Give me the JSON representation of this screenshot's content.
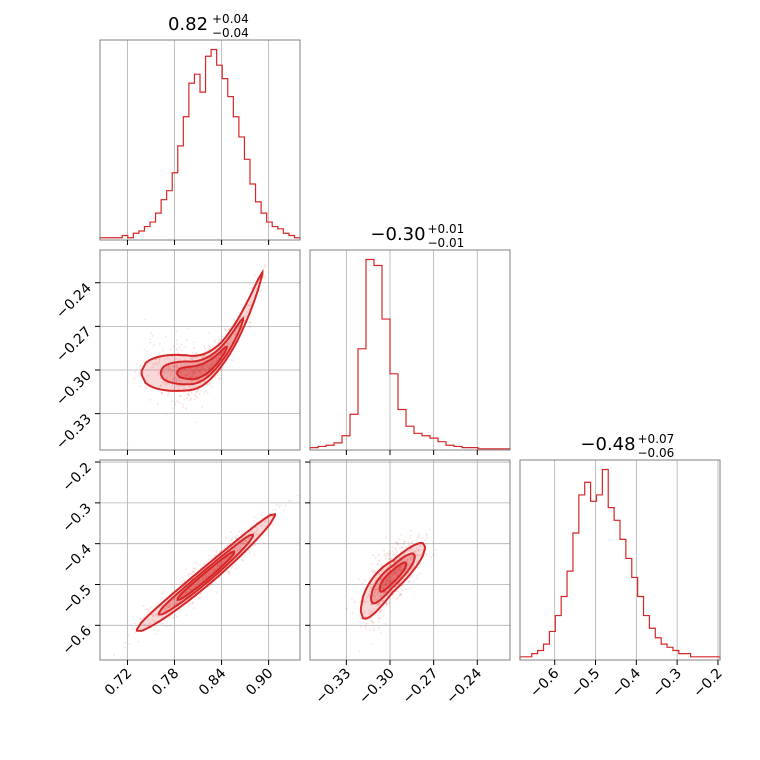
{
  "chart_data": {
    "type": "corner",
    "color": "#d62728",
    "grid": true,
    "parameters": [
      {
        "summary": {
          "median": "0.82",
          "plus": "+0.04",
          "minus": "−0.04"
        },
        "range": [
          0.685,
          0.94
        ],
        "ticks": [
          {
            "value": 0.72,
            "label": "0.72"
          },
          {
            "value": 0.78,
            "label": "0.78"
          },
          {
            "value": 0.84,
            "label": "0.84"
          },
          {
            "value": 0.9,
            "label": "0.90"
          }
        ]
      },
      {
        "summary": {
          "median": "−0.30",
          "plus": "+0.01",
          "minus": "−0.01"
        },
        "range": [
          -0.355,
          -0.2175
        ],
        "ticks": [
          {
            "value": -0.33,
            "label": "−0.33"
          },
          {
            "value": -0.3,
            "label": "−0.30"
          },
          {
            "value": -0.27,
            "label": "−0.27"
          },
          {
            "value": -0.24,
            "label": "−0.24"
          }
        ]
      },
      {
        "summary": {
          "median": "−0.48",
          "plus": "+0.07",
          "minus": "−0.06"
        },
        "range": [
          -0.685,
          -0.195
        ],
        "ticks": [
          {
            "value": -0.6,
            "label": "−0.6"
          },
          {
            "value": -0.5,
            "label": "−0.5"
          },
          {
            "value": -0.4,
            "label": "−0.4"
          },
          {
            "value": -0.3,
            "label": "−0.3"
          },
          {
            "value": -0.2,
            "label": "−0.2"
          }
        ]
      }
    ],
    "histograms": [
      [
        1,
        1,
        1,
        1,
        2,
        1,
        3,
        4,
        6,
        8,
        12,
        18,
        22,
        30,
        42,
        55,
        70,
        74,
        66,
        82,
        85,
        78,
        72,
        64,
        55,
        46,
        36,
        25,
        17,
        12,
        8,
        6,
        5,
        3,
        2,
        1
      ],
      [
        2,
        3,
        4,
        6,
        12,
        30,
        85,
        160,
        155,
        110,
        64,
        34,
        20,
        14,
        12,
        10,
        7,
        4,
        3,
        2,
        2,
        1,
        1,
        1,
        1
      ],
      [
        1,
        1,
        2,
        3,
        5,
        9,
        14,
        20,
        28,
        40,
        52,
        56,
        50,
        52,
        60,
        48,
        44,
        38,
        32,
        26,
        20,
        14,
        10,
        7,
        5,
        4,
        3,
        2,
        2,
        1,
        1,
        1,
        1,
        1
      ]
    ],
    "pairs": [
      {
        "x_param": 0,
        "y_param": 1
      },
      {
        "x_param": 0,
        "y_param": 2
      },
      {
        "x_param": 1,
        "y_param": 2
      }
    ]
  }
}
